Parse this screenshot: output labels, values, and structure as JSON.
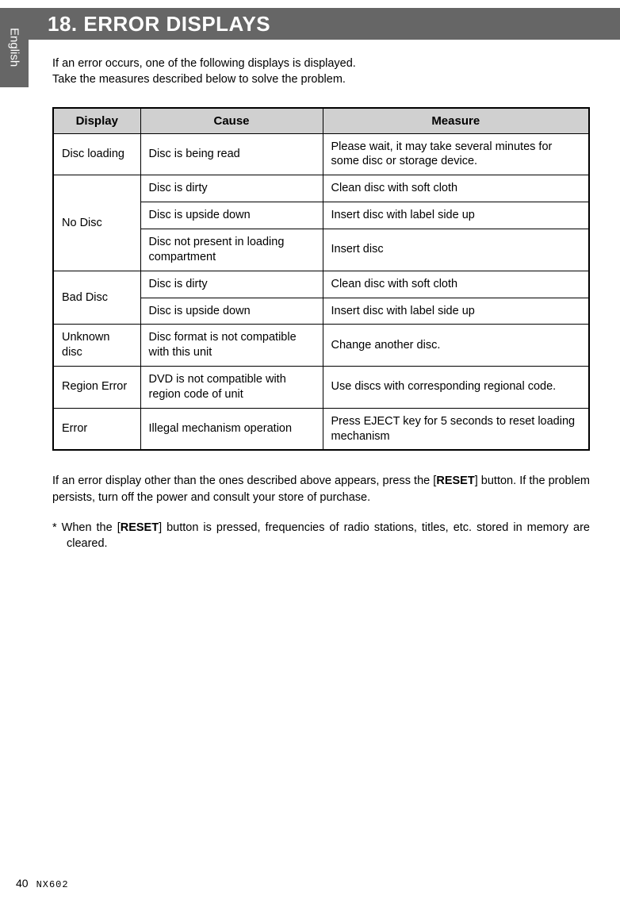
{
  "side_tab": {
    "label": "English",
    "bg_color": "#666666",
    "text_color": "#ffffff"
  },
  "title": {
    "text": "18. ERROR DISPLAYS",
    "bg_color": "#666666",
    "text_color": "#ffffff",
    "fontsize": 26
  },
  "intro": {
    "line1": "If an error occurs, one of the following displays is displayed.",
    "line2": "Take the measures described below to solve the problem."
  },
  "table": {
    "header_bg": "#d0d0d0",
    "border_color": "#000000",
    "columns": [
      "Display",
      "Cause",
      "Measure"
    ],
    "rows": [
      {
        "display": "Disc loading",
        "cause": "Disc is being read",
        "measure": "Please wait, it may take several minutes for some disc or storage device.",
        "rowspan": 1
      },
      {
        "display": "No Disc",
        "cause": "Disc is dirty",
        "measure": "Clean disc with soft cloth",
        "rowspan": 3
      },
      {
        "display": "",
        "cause": "Disc is upside down",
        "measure": "Insert disc with label side up",
        "rowspan": 0
      },
      {
        "display": "",
        "cause": "Disc not present in loading compartment",
        "measure": "Insert disc",
        "rowspan": 0
      },
      {
        "display": "Bad Disc",
        "cause": "Disc is dirty",
        "measure": "Clean disc with soft cloth",
        "rowspan": 2
      },
      {
        "display": "",
        "cause": "Disc is upside down",
        "measure": "Insert disc with label side up",
        "rowspan": 0
      },
      {
        "display": "Unknown disc",
        "cause": "Disc format is not compatible with this unit",
        "measure": "Change another disc.",
        "rowspan": 1
      },
      {
        "display": "Region Error",
        "cause": "DVD is not compatible with region code of unit",
        "measure": "Use discs with corresponding regional code.",
        "rowspan": 1
      },
      {
        "display": "Error",
        "cause": "Illegal mechanism operation",
        "measure": "Press EJECT key for 5 seconds to reset loading mechanism",
        "rowspan": 1
      }
    ]
  },
  "footer": {
    "para_before": "If an error display other than the ones described above appears, press the [",
    "para_bold1": "RESET",
    "para_after1": "] button. If the problem persists, turn off the power and consult your store of purchase.",
    "note_prefix": "*   When the [",
    "note_bold": "RESET",
    "note_after": "] button is pressed, frequencies of radio stations, titles, etc. stored in memory are cleared."
  },
  "page_footer": {
    "page_number": "40",
    "model": "NX602"
  }
}
